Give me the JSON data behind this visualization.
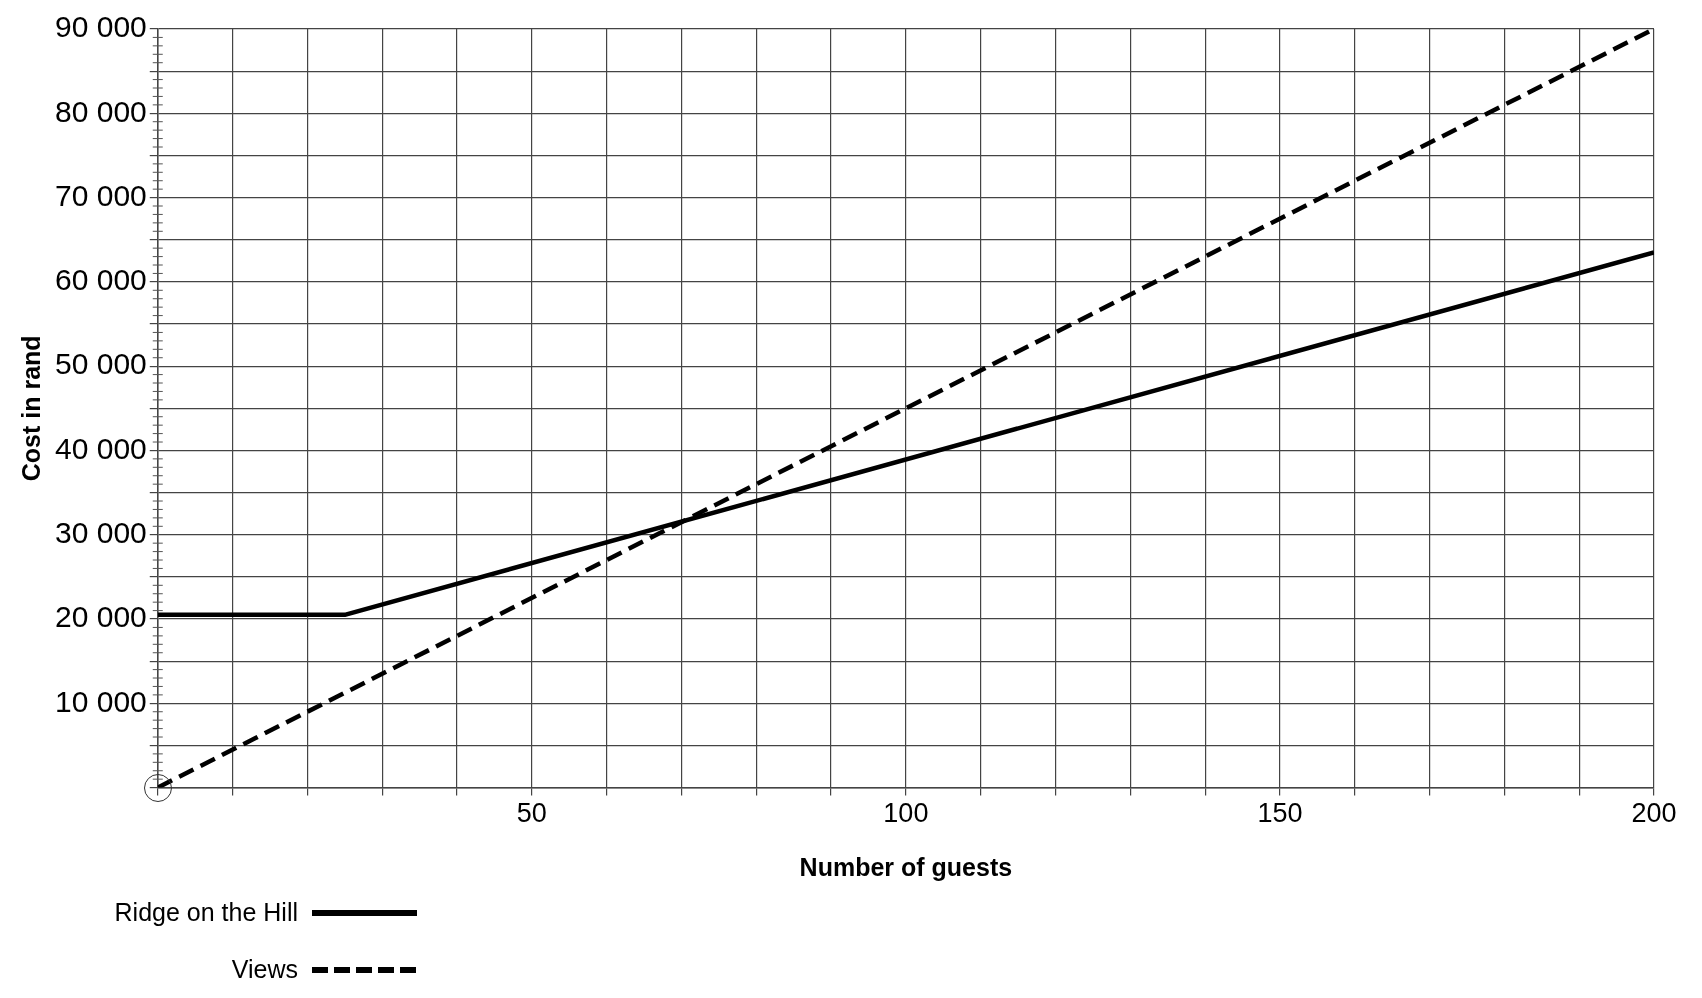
{
  "chart_data": {
    "type": "line",
    "xlabel": "Number of guests",
    "ylabel": "Cost in rand",
    "series": [
      {
        "name": "Ridge on the Hill",
        "color": "#000000",
        "line_style": "solid",
        "x": [
          0,
          25,
          200
        ],
        "values": [
          20500,
          20500,
          63500
        ]
      },
      {
        "name": "Views",
        "color": "#000000",
        "line_style": "dashed",
        "x": [
          0,
          200
        ],
        "values": [
          0,
          90000
        ]
      }
    ],
    "xlim": [
      0,
      200
    ],
    "ylim": [
      0,
      90000
    ],
    "xticks": [
      {
        "value": 0,
        "label": null
      },
      {
        "value": 10,
        "label": null
      },
      {
        "value": 20,
        "label": null
      },
      {
        "value": 30,
        "label": null
      },
      {
        "value": 40,
        "label": null
      },
      50,
      {
        "value": 60,
        "label": null
      },
      {
        "value": 70,
        "label": null
      },
      {
        "value": 80,
        "label": null
      },
      {
        "value": 90,
        "label": null
      },
      100,
      {
        "value": 110,
        "label": null
      },
      {
        "value": 120,
        "label": null
      },
      {
        "value": 130,
        "label": null
      },
      {
        "value": 140,
        "label": null
      },
      150,
      {
        "value": 160,
        "label": null
      },
      {
        "value": 170,
        "label": null
      },
      {
        "value": 180,
        "label": null
      },
      {
        "value": 190,
        "label": null
      },
      200
    ],
    "yticks": [
      {
        "value": 0,
        "label": null
      },
      {
        "value": 5000,
        "label": null
      },
      {
        "value": 10000,
        "label": "10 000"
      },
      {
        "value": 15000,
        "label": null
      },
      {
        "value": 20000,
        "label": "20 000"
      },
      {
        "value": 25000,
        "label": null
      },
      {
        "value": 30000,
        "label": "30 000"
      },
      {
        "value": 35000,
        "label": null
      },
      {
        "value": 40000,
        "label": "40 000"
      },
      {
        "value": 45000,
        "label": null
      },
      {
        "value": 50000,
        "label": "50 000"
      },
      {
        "value": 55000,
        "label": null
      },
      {
        "value": 60000,
        "label": "60 000"
      },
      {
        "value": 65000,
        "label": null
      },
      {
        "value": 70000,
        "label": "70 000"
      },
      {
        "value": 75000,
        "label": null
      },
      {
        "value": 80000,
        "label": "80 000"
      },
      {
        "value": 85000,
        "label": null
      },
      {
        "value": 90000,
        "label": "90 000"
      }
    ],
    "grid": true,
    "legend": "bottom left"
  }
}
